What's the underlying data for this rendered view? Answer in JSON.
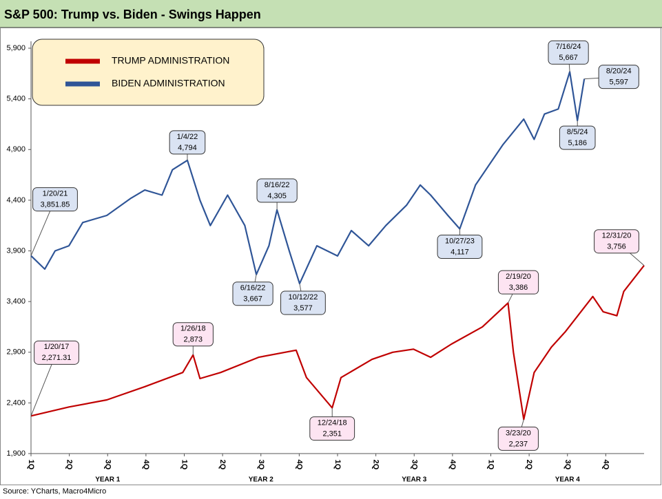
{
  "chart_data": {
    "type": "line",
    "title": "S&P 500: Trump vs. Biden - Swings Happen",
    "source": "Source: YCharts, Macro4Micro",
    "xlim": [
      0,
      16
    ],
    "xticks": [
      {
        "value": 0,
        "label": "1Q"
      },
      {
        "value": 1,
        "label": "2Q"
      },
      {
        "value": 2,
        "label": "3Q"
      },
      {
        "value": 3,
        "label": "4Q"
      },
      {
        "value": 4,
        "label": "1Q"
      },
      {
        "value": 5,
        "label": "2Q"
      },
      {
        "value": 6,
        "label": "3Q"
      },
      {
        "value": 7,
        "label": "4Q"
      },
      {
        "value": 8,
        "label": "1Q"
      },
      {
        "value": 9,
        "label": "2Q"
      },
      {
        "value": 10,
        "label": "3Q"
      },
      {
        "value": 11,
        "label": "4Q"
      },
      {
        "value": 12,
        "label": "1Q"
      },
      {
        "value": 13,
        "label": "2Q"
      },
      {
        "value": 14,
        "label": "3Q"
      },
      {
        "value": 15,
        "label": "4Q"
      }
    ],
    "x_groups": [
      {
        "label": "YEAR 1",
        "start": 0,
        "end": 4
      },
      {
        "label": "YEAR 2",
        "start": 4,
        "end": 8
      },
      {
        "label": "YEAR 3",
        "start": 8,
        "end": 12
      },
      {
        "label": "YEAR 4",
        "start": 12,
        "end": 16
      }
    ],
    "ylim": [
      1900,
      5900
    ],
    "yticks": [
      {
        "value": 1900,
        "label": "1,900"
      },
      {
        "value": 2400,
        "label": "2,400"
      },
      {
        "value": 2900,
        "label": "2,900"
      },
      {
        "value": 3400,
        "label": "3,400"
      },
      {
        "value": 3900,
        "label": "3,900"
      },
      {
        "value": 4400,
        "label": "4,400"
      },
      {
        "value": 4900,
        "label": "4,900"
      },
      {
        "value": 5400,
        "label": "5,400"
      },
      {
        "value": 5900,
        "label": "5,900"
      }
    ],
    "legend": "top-left",
    "series": [
      {
        "name": "TRUMP ADMINISTRATION",
        "color": "#c00000",
        "annotation_color": "#fde4f2",
        "x": [
          0,
          0.99,
          1.98,
          2.97,
          3.96,
          4.23,
          4.41,
          4.95,
          5.94,
          6.92,
          7.19,
          7.86,
          8.09,
          8.9,
          9.44,
          9.98,
          10.43,
          10.97,
          11.78,
          12.45,
          12.59,
          12.86,
          13.13,
          13.58,
          13.94,
          14.66,
          14.93,
          15.29,
          15.47,
          16
        ],
        "values": [
          2271.31,
          2360,
          2430,
          2560,
          2700,
          2873,
          2640,
          2700,
          2850,
          2920,
          2650,
          2351,
          2650,
          2830,
          2900,
          2930,
          2850,
          2980,
          3150,
          3386,
          2900,
          2237,
          2700,
          2950,
          3100,
          3450,
          3300,
          3260,
          3500,
          3756
        ],
        "annotations": [
          {
            "date": "1/20/17",
            "x": 0,
            "value": 2271.31,
            "label": "2,271.31"
          },
          {
            "date": "1/26/18",
            "x": 4.23,
            "value": 2873,
            "label": "2,873"
          },
          {
            "date": "12/24/18",
            "x": 7.86,
            "value": 2351,
            "label": "2,351"
          },
          {
            "date": "2/19/20",
            "x": 12.45,
            "value": 3386,
            "label": "3,386"
          },
          {
            "date": "3/23/20",
            "x": 12.86,
            "value": 2237,
            "label": "2,237"
          },
          {
            "date": "12/31/20",
            "x": 16,
            "value": 3756,
            "label": "3,756"
          }
        ]
      },
      {
        "name": "BIDEN ADMINISTRATION",
        "color": "#2f5597",
        "annotation_color": "#dae3f3",
        "x": [
          0,
          0.36,
          0.63,
          0.99,
          1.35,
          1.98,
          2.61,
          2.97,
          3.42,
          3.69,
          4.08,
          4.41,
          4.68,
          5.13,
          5.58,
          5.88,
          6.21,
          6.42,
          6.74,
          7.01,
          7.46,
          8.0,
          8.36,
          8.81,
          9.26,
          9.8,
          10.16,
          10.43,
          10.88,
          11.19,
          11.6,
          11.96,
          12.32,
          12.86,
          13.13,
          13.4,
          13.76,
          14.06,
          14.26,
          14.44
        ],
        "values": [
          3851.85,
          3720,
          3900,
          3950,
          4180,
          4250,
          4420,
          4500,
          4450,
          4700,
          4794,
          4400,
          4150,
          4450,
          4150,
          3667,
          3950,
          4305,
          3900,
          3577,
          3950,
          3850,
          4100,
          3950,
          4150,
          4350,
          4550,
          4450,
          4250,
          4117,
          4550,
          4750,
          4950,
          5200,
          5000,
          5250,
          5300,
          5667,
          5186,
          5597
        ],
        "annotations": [
          {
            "date": "1/20/21",
            "x": 0,
            "value": 3851.85,
            "label": "3,851.85"
          },
          {
            "date": "1/4/22",
            "x": 4.08,
            "value": 4794,
            "label": "4,794"
          },
          {
            "date": "6/16/22",
            "x": 5.88,
            "value": 3667,
            "label": "3,667"
          },
          {
            "date": "8/16/22",
            "x": 6.42,
            "value": 4305,
            "label": "4,305"
          },
          {
            "date": "10/12/22",
            "x": 7.01,
            "value": 3577,
            "label": "3,577"
          },
          {
            "date": "10/27/23",
            "x": 11.19,
            "value": 4117,
            "label": "4,117"
          },
          {
            "date": "7/16/24",
            "x": 14.06,
            "value": 5667,
            "label": "5,667"
          },
          {
            "date": "8/5/24",
            "x": 14.26,
            "value": 5186,
            "label": "5,186"
          },
          {
            "date": "8/20/24",
            "x": 14.44,
            "value": 5597,
            "label": "5,597"
          }
        ]
      }
    ]
  }
}
